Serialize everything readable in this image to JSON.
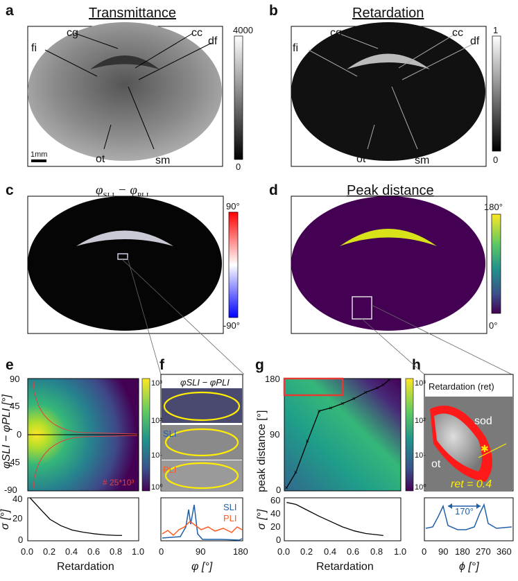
{
  "panels": {
    "a": {
      "letter": "a",
      "title": "Transmittance",
      "colorbar_max": "4000",
      "colorbar_min": "0",
      "scalebar": "1mm",
      "labels": {
        "cg": "cg",
        "cc": "cc",
        "fi": "fi",
        "df": "df",
        "ot": "ot",
        "sm": "sm"
      }
    },
    "b": {
      "letter": "b",
      "title": "Retardation",
      "colorbar_max": "1",
      "colorbar_min": "0",
      "labels": {
        "cg": "cg",
        "cc": "cc",
        "fi": "fi",
        "df": "df",
        "ot": "ot",
        "sm": "sm"
      }
    },
    "c": {
      "letter": "c",
      "title_phi": "φ",
      "title_sub1": "SLI",
      "title_minus": " − φ",
      "title_sub2": "PLI",
      "colorbar_max": "90°",
      "colorbar_min": "-90°"
    },
    "d": {
      "letter": "d",
      "title": "Peak distance",
      "colorbar_max": "180°",
      "colorbar_min": "0°"
    },
    "e": {
      "letter": "e",
      "ylabel_top": "φSLI − φPLI [°]",
      "yticks": [
        "90",
        "45",
        "0",
        "-45",
        "-90"
      ],
      "xticks": [
        "0.0",
        "0.2",
        "0.4",
        "0.6",
        "0.8",
        "1.0"
      ],
      "xlabel": "Retardation",
      "annotation": "# 25*10³",
      "colorbar_ticks": [
        "10³",
        "10²",
        "10¹",
        "10⁰"
      ],
      "sigma_label": "σ [°]",
      "sigma_yticks": [
        "40",
        "20",
        "0"
      ]
    },
    "f": {
      "letter": "f",
      "title": "φSLI − φPLI",
      "sli_label": "SLI",
      "pli_label": "PLI",
      "legend_sli": "SLI",
      "legend_pli": "PLI",
      "xticks": [
        "0",
        "90",
        "180"
      ],
      "xlabel": "φ [°]"
    },
    "g": {
      "letter": "g",
      "ylabel": "peak distance [°]",
      "yticks": [
        "180",
        "90",
        "0"
      ],
      "xticks": [
        "0.0",
        "0.2",
        "0.4",
        "0.6",
        "0.8",
        "1.0"
      ],
      "xlabel": "Retardation",
      "colorbar_ticks": [
        "10³",
        "10²",
        "10¹",
        "10⁰"
      ],
      "sigma_label": "σ [°]",
      "sigma_yticks": [
        "60",
        "40",
        "20",
        "0"
      ]
    },
    "h": {
      "letter": "h",
      "title": "Retardation (ret)",
      "sod": "sod",
      "ot": "ot",
      "ret_label": "ret = 0.4",
      "peak_sep": "170°",
      "xticks": [
        "0",
        "90",
        "180",
        "270",
        "360"
      ],
      "xlabel": "ϕ [°]"
    }
  },
  "colors": {
    "sli": "#1f5fa8",
    "pli": "#ff5a1f",
    "highlight_red": "#e53935",
    "roi_yellow": "#ffee00"
  },
  "chart_data": [
    {
      "type": "line",
      "title": "",
      "xlabel": "Retardation",
      "ylabel": "σ [°]",
      "xlim": [
        0,
        1
      ],
      "ylim": [
        0,
        40
      ],
      "series": [
        {
          "x": [
            0.02,
            0.1,
            0.2,
            0.3,
            0.4,
            0.5,
            0.6,
            0.7,
            0.8,
            0.85
          ],
          "y": [
            40,
            31,
            20,
            14,
            10,
            8,
            6.5,
            5.5,
            5,
            5
          ]
        }
      ]
    },
    {
      "type": "line",
      "title": "",
      "xlabel": "Retardation",
      "ylabel": "σ [°]",
      "xlim": [
        0,
        1
      ],
      "ylim": [
        0,
        65
      ],
      "series": [
        {
          "x": [
            0.02,
            0.1,
            0.2,
            0.3,
            0.4,
            0.5,
            0.6,
            0.7,
            0.8,
            0.85
          ],
          "y": [
            58,
            55,
            46,
            37,
            29,
            21,
            15,
            11,
            9,
            8
          ]
        }
      ]
    },
    {
      "type": "line",
      "title": "",
      "xlabel": "Retardation",
      "ylabel": "peak distance [°]",
      "xlim": [
        0,
        1
      ],
      "ylim": [
        0,
        180
      ],
      "series": [
        {
          "x": [
            0.02,
            0.1,
            0.2,
            0.3,
            0.4,
            0.5,
            0.6,
            0.7,
            0.8,
            0.85,
            0.9
          ],
          "y": [
            5,
            30,
            80,
            128,
            133,
            140,
            148,
            158,
            165,
            170,
            178
          ]
        }
      ]
    }
  ]
}
